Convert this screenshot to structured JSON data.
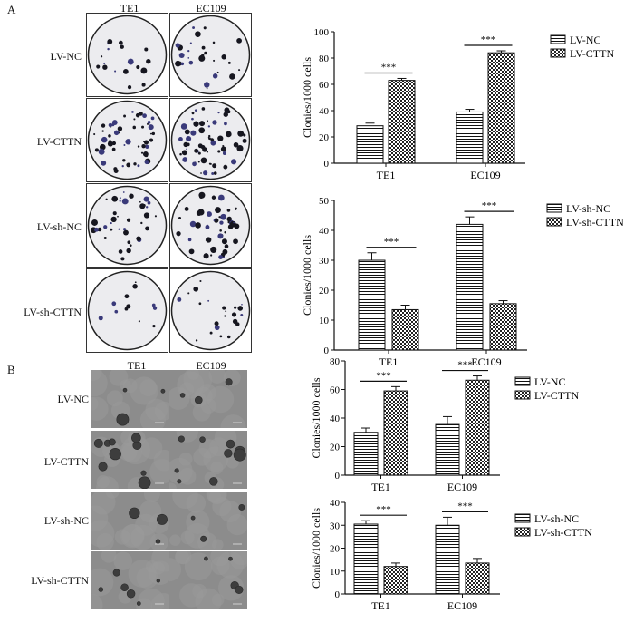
{
  "panels": {
    "a": {
      "letter": "A",
      "columns": [
        "TE1",
        "EC109"
      ],
      "rows": [
        "LV-NC",
        "LV-CTTN",
        "LV-sh-NC",
        "LV-sh-CTTN"
      ]
    },
    "b": {
      "letter": "B",
      "columns": [
        "TE1",
        "EC109"
      ],
      "rows": [
        "LV-NC",
        "LV-CTTN",
        "LV-sh-NC",
        "LV-sh-CTTN"
      ]
    }
  },
  "chart_data": [
    {
      "type": "bar",
      "categories": [
        "TE1",
        "EC109"
      ],
      "series": [
        {
          "name": "LV-NC",
          "values": [
            28.5,
            39
          ],
          "errors": [
            2,
            2
          ]
        },
        {
          "name": "LV-CTTN",
          "values": [
            63,
            84
          ],
          "errors": [
            1.5,
            1.5
          ]
        }
      ],
      "ylabel": "Clonies/1000 cells",
      "ylim": [
        0,
        100
      ],
      "yticks": [
        0,
        20,
        40,
        60,
        80,
        100
      ],
      "significance": [
        "***",
        "***"
      ]
    },
    {
      "type": "bar",
      "categories": [
        "TE1",
        "EC109"
      ],
      "series": [
        {
          "name": "LV-sh-NC",
          "values": [
            30,
            42
          ],
          "errors": [
            2.5,
            2.5
          ]
        },
        {
          "name": "LV-sh-CTTN",
          "values": [
            13.5,
            15.5
          ],
          "errors": [
            1.5,
            1
          ]
        }
      ],
      "ylabel": "Clonies/1000 cells",
      "ylim": [
        0,
        50
      ],
      "yticks": [
        0,
        10,
        20,
        30,
        40,
        50
      ],
      "significance": [
        "***",
        "***"
      ]
    },
    {
      "type": "bar",
      "categories": [
        "TE1",
        "EC109"
      ],
      "series": [
        {
          "name": "LV-NC",
          "values": [
            30,
            35.5
          ],
          "errors": [
            3,
            5.5
          ]
        },
        {
          "name": "LV-CTTN",
          "values": [
            59,
            66.5
          ],
          "errors": [
            3,
            3
          ]
        }
      ],
      "ylabel": "Clonies/1000 cells",
      "ylim": [
        0,
        80
      ],
      "yticks": [
        0,
        20,
        40,
        60,
        80
      ],
      "significance": [
        "***",
        "***"
      ]
    },
    {
      "type": "bar",
      "categories": [
        "TE1",
        "EC109"
      ],
      "series": [
        {
          "name": "LV-sh-NC",
          "values": [
            30.5,
            30
          ],
          "errors": [
            1.5,
            3.5
          ]
        },
        {
          "name": "LV-sh-CTTN",
          "values": [
            12,
            13.5
          ],
          "errors": [
            1.5,
            2
          ]
        }
      ],
      "ylabel": "Clonies/1000 cells",
      "ylim": [
        0,
        40
      ],
      "yticks": [
        0,
        10,
        20,
        30,
        40
      ],
      "significance": [
        "***",
        "***"
      ]
    }
  ]
}
